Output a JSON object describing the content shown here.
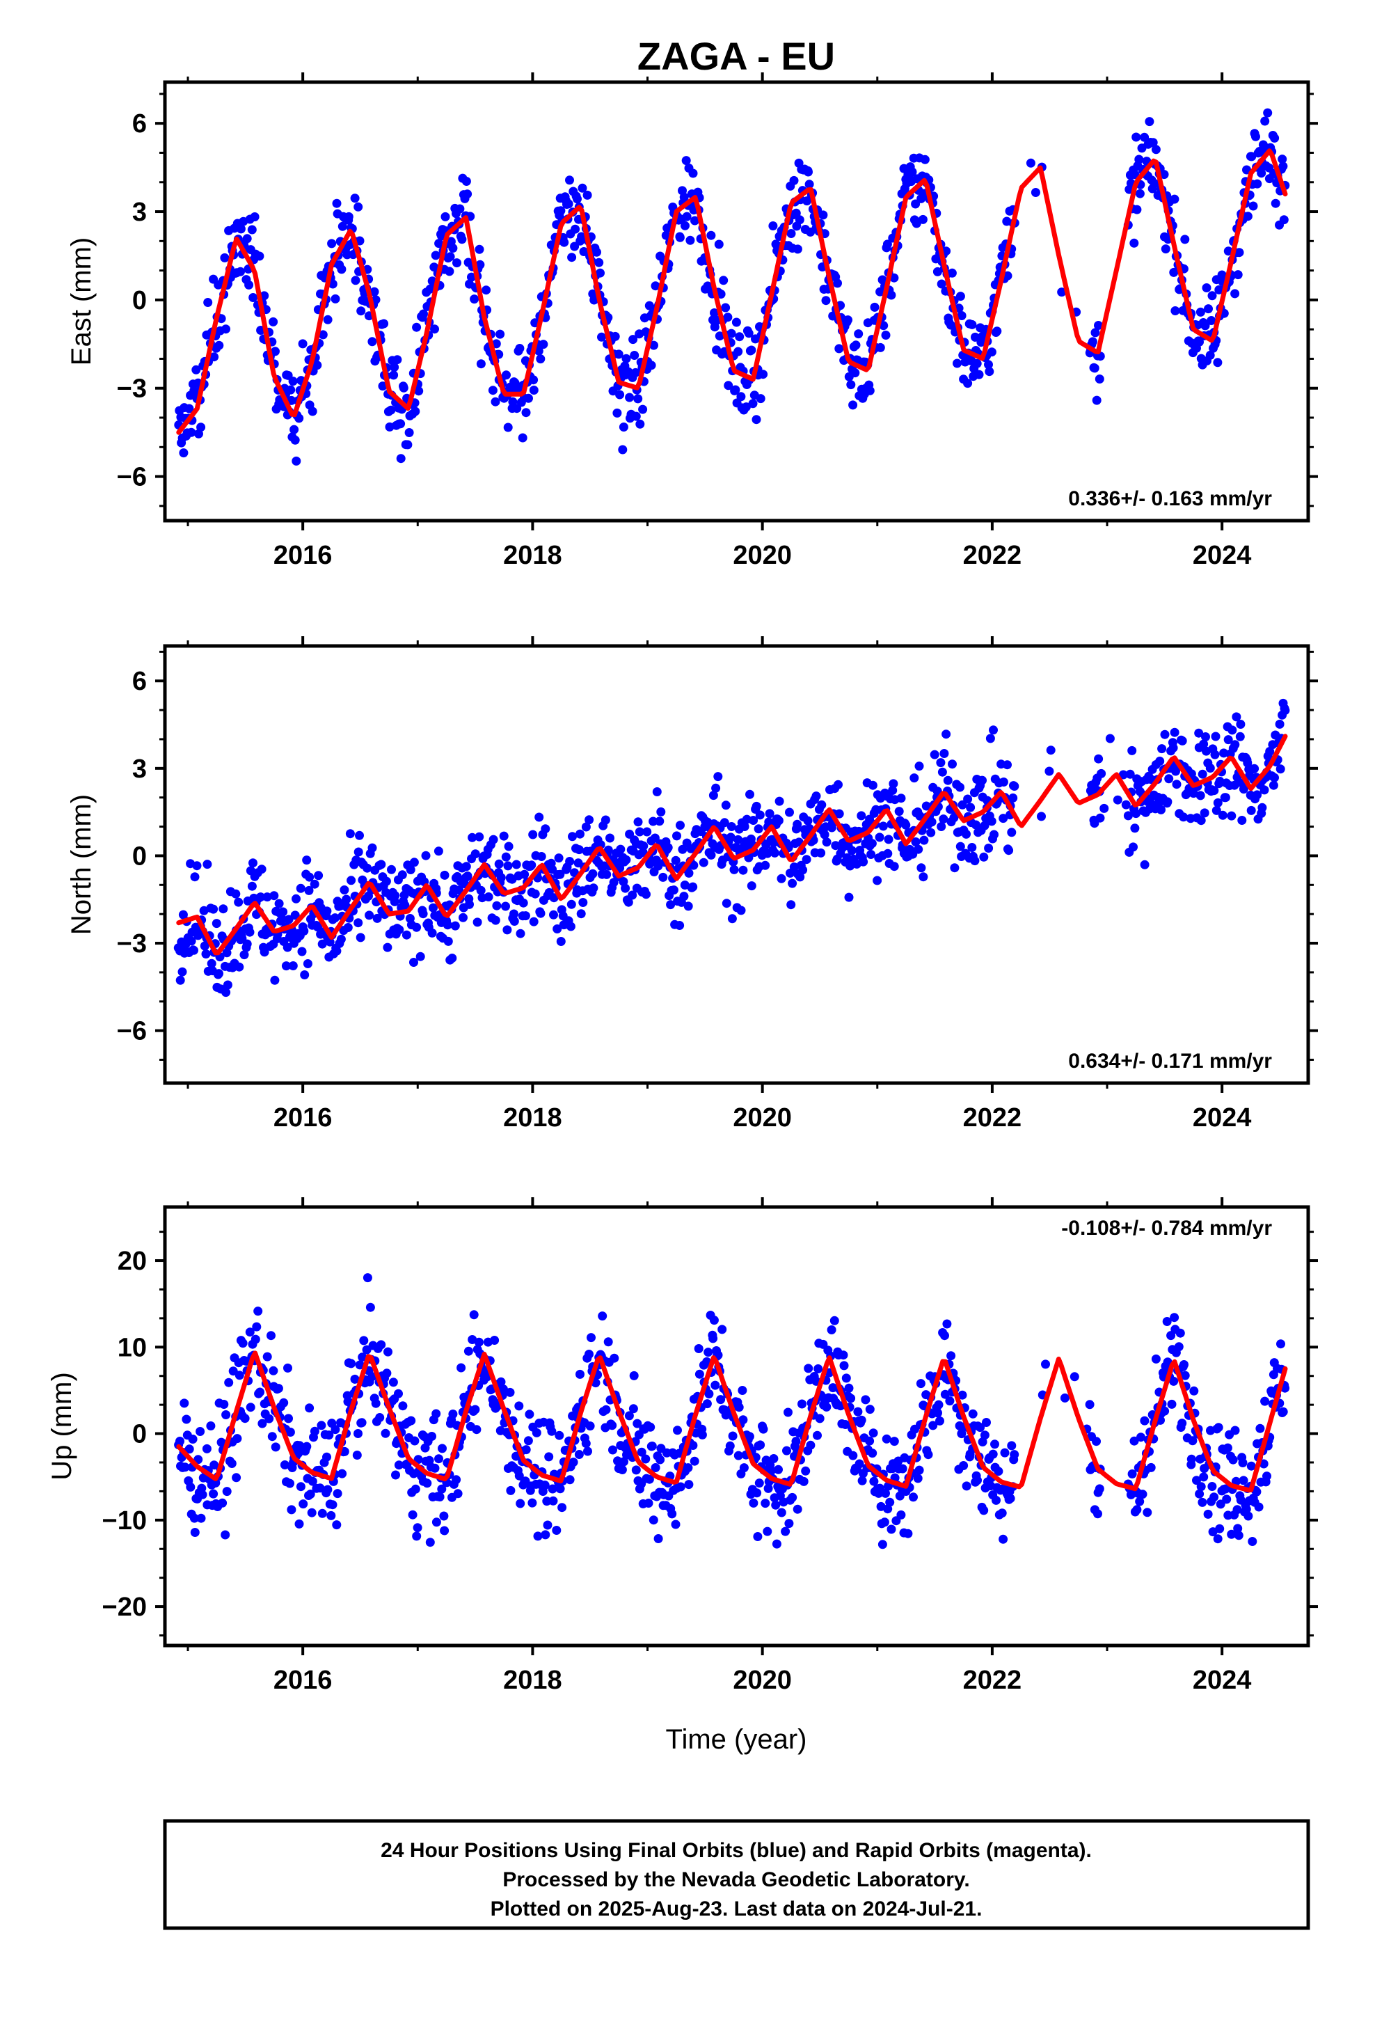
{
  "title": "ZAGA - EU",
  "xlabel": "Time (year)",
  "colors": {
    "data": "#0000ff",
    "model": "#ff0000",
    "frame": "#000000"
  },
  "footer": {
    "line1": "24 Hour Positions Using Final Orbits (blue) and Rapid Orbits (magenta).",
    "line2": "Processed by the Nevada Geodetic Laboratory.",
    "line3": "Plotted on 2025-Aug-23. Last data on 2024-Jul-21."
  },
  "chart_data": [
    {
      "type": "scatter",
      "component": "east",
      "ylabel": "East (mm)",
      "rate_label": "0.336+/- 0.163 mm/yr",
      "rate_position": "bottom-right",
      "xlim": [
        2014.8,
        2024.75
      ],
      "ylim": [
        -7.5,
        7.4
      ],
      "xticks": [
        2016,
        2018,
        2020,
        2022,
        2024
      ],
      "yticks": [
        -6,
        -3,
        0,
        3,
        6
      ],
      "series": [
        {
          "role": "data",
          "color": "#0000ff"
        },
        {
          "role": "model",
          "color": "#ff0000",
          "x": [
            2014.92,
            2015.08,
            2015.25,
            2015.42,
            2015.58,
            2015.75,
            2015.92,
            2016.08,
            2016.25,
            2016.42,
            2016.58,
            2016.75,
            2016.92,
            2017.08,
            2017.25,
            2017.42,
            2017.58,
            2017.75,
            2017.92,
            2018.08,
            2018.25,
            2018.42,
            2018.58,
            2018.75,
            2018.92,
            2019.08,
            2019.25,
            2019.42,
            2019.58,
            2019.75,
            2019.92,
            2020.08,
            2020.25,
            2020.42,
            2020.58,
            2020.75,
            2020.92,
            2021.08,
            2021.25,
            2021.42,
            2021.58,
            2021.75,
            2021.92,
            2022.08,
            2022.25,
            2022.42,
            2022.58,
            2022.75,
            2022.92,
            2023.08,
            2023.25,
            2023.42,
            2023.58,
            2023.75,
            2023.92,
            2024.08,
            2024.25,
            2024.42,
            2024.55
          ],
          "y": [
            -4.5,
            -3.7,
            -0.6,
            2.1,
            1.0,
            -2.6,
            -4.0,
            -2.1,
            1.2,
            2.4,
            0.2,
            -3.1,
            -3.7,
            -1.1,
            2.2,
            2.8,
            -0.6,
            -3.2,
            -3.2,
            -0.5,
            2.6,
            3.2,
            0.0,
            -2.8,
            -3.0,
            -0.3,
            3.0,
            3.5,
            0.4,
            -2.4,
            -2.7,
            0.2,
            3.3,
            3.8,
            0.8,
            -2.1,
            -2.4,
            0.4,
            3.5,
            4.1,
            1.2,
            -1.7,
            -2.0,
            0.7,
            3.8,
            4.5,
            1.5,
            -1.4,
            -1.8,
            1.0,
            4.0,
            4.8,
            1.9,
            -1.0,
            -1.4,
            1.3,
            4.3,
            5.1,
            3.6
          ]
        }
      ]
    },
    {
      "type": "scatter",
      "component": "north",
      "ylabel": "North (mm)",
      "rate_label": "0.634+/- 0.171 mm/yr",
      "rate_position": "bottom-right",
      "xlim": [
        2014.8,
        2024.75
      ],
      "ylim": [
        -7.8,
        7.2
      ],
      "xticks": [
        2016,
        2018,
        2020,
        2022,
        2024
      ],
      "yticks": [
        -6,
        -3,
        0,
        3,
        6
      ],
      "series": [
        {
          "role": "data",
          "color": "#0000ff"
        },
        {
          "role": "model",
          "color": "#ff0000",
          "x": [
            2014.92,
            2015.08,
            2015.25,
            2015.42,
            2015.58,
            2015.75,
            2015.92,
            2016.08,
            2016.25,
            2016.42,
            2016.58,
            2016.75,
            2016.92,
            2017.08,
            2017.25,
            2017.42,
            2017.58,
            2017.75,
            2017.92,
            2018.08,
            2018.25,
            2018.42,
            2018.58,
            2018.75,
            2018.92,
            2019.08,
            2019.25,
            2019.42,
            2019.58,
            2019.75,
            2019.92,
            2020.08,
            2020.25,
            2020.42,
            2020.58,
            2020.75,
            2020.92,
            2021.08,
            2021.25,
            2021.42,
            2021.58,
            2021.75,
            2021.92,
            2022.08,
            2022.25,
            2022.42,
            2022.58,
            2022.75,
            2022.92,
            2023.08,
            2023.25,
            2023.42,
            2023.58,
            2023.75,
            2023.92,
            2024.08,
            2024.25,
            2024.42,
            2024.55
          ],
          "y": [
            -2.3,
            -2.1,
            -3.4,
            -2.5,
            -1.6,
            -2.6,
            -2.4,
            -1.7,
            -2.8,
            -1.8,
            -0.9,
            -2.0,
            -1.9,
            -1.0,
            -2.1,
            -1.2,
            -0.3,
            -1.3,
            -1.1,
            -0.3,
            -1.5,
            -0.6,
            0.3,
            -0.7,
            -0.4,
            0.4,
            -0.8,
            0.1,
            1.0,
            -0.1,
            0.2,
            1.0,
            -0.2,
            0.7,
            1.6,
            0.5,
            0.8,
            1.6,
            0.4,
            1.3,
            2.2,
            1.2,
            1.5,
            2.2,
            1.0,
            1.9,
            2.8,
            1.8,
            2.1,
            2.8,
            1.7,
            2.5,
            3.4,
            2.4,
            2.7,
            3.4,
            2.3,
            3.1,
            4.1
          ]
        }
      ]
    },
    {
      "type": "scatter",
      "component": "up",
      "ylabel": "Up (mm)",
      "rate_label": "-0.108+/- 0.784 mm/yr",
      "rate_position": "top-right",
      "xlim": [
        2014.8,
        2024.75
      ],
      "ylim": [
        -24.5,
        26.2
      ],
      "xticks": [
        2016,
        2018,
        2020,
        2022,
        2024
      ],
      "yticks": [
        -20,
        -10,
        0,
        10,
        20
      ],
      "series": [
        {
          "role": "data",
          "color": "#0000ff"
        },
        {
          "role": "model",
          "color": "#ff0000",
          "x": [
            2014.92,
            2015.08,
            2015.25,
            2015.42,
            2015.58,
            2015.75,
            2015.92,
            2016.08,
            2016.25,
            2016.42,
            2016.58,
            2016.75,
            2016.92,
            2017.08,
            2017.25,
            2017.42,
            2017.58,
            2017.75,
            2017.92,
            2018.08,
            2018.25,
            2018.42,
            2018.58,
            2018.75,
            2018.92,
            2019.08,
            2019.25,
            2019.42,
            2019.58,
            2019.75,
            2019.92,
            2020.08,
            2020.25,
            2020.42,
            2020.58,
            2020.75,
            2020.92,
            2021.08,
            2021.25,
            2021.42,
            2021.58,
            2021.75,
            2021.92,
            2022.08,
            2022.25,
            2022.42,
            2022.58,
            2022.75,
            2022.92,
            2023.08,
            2023.25,
            2023.42,
            2023.58,
            2023.75,
            2023.92,
            2024.08,
            2024.25,
            2024.42,
            2024.55
          ],
          "y": [
            -1.5,
            -3.8,
            -5.3,
            2.5,
            9.5,
            3.0,
            -2.8,
            -4.5,
            -5.2,
            2.7,
            9.3,
            3.0,
            -2.9,
            -4.6,
            -5.3,
            2.6,
            9.2,
            2.8,
            -3.1,
            -4.8,
            -5.5,
            2.5,
            9.1,
            2.6,
            -3.3,
            -5.0,
            -5.7,
            2.3,
            9.0,
            2.4,
            -3.5,
            -5.2,
            -5.9,
            2.1,
            8.9,
            2.2,
            -3.7,
            -5.4,
            -6.1,
            1.9,
            8.8,
            2.0,
            -3.9,
            -5.6,
            -6.2,
            1.8,
            8.7,
            1.8,
            -4.1,
            -5.8,
            -6.4,
            1.6,
            8.6,
            1.6,
            -4.3,
            -6.0,
            -6.6,
            1.4,
            7.5
          ]
        }
      ]
    }
  ]
}
